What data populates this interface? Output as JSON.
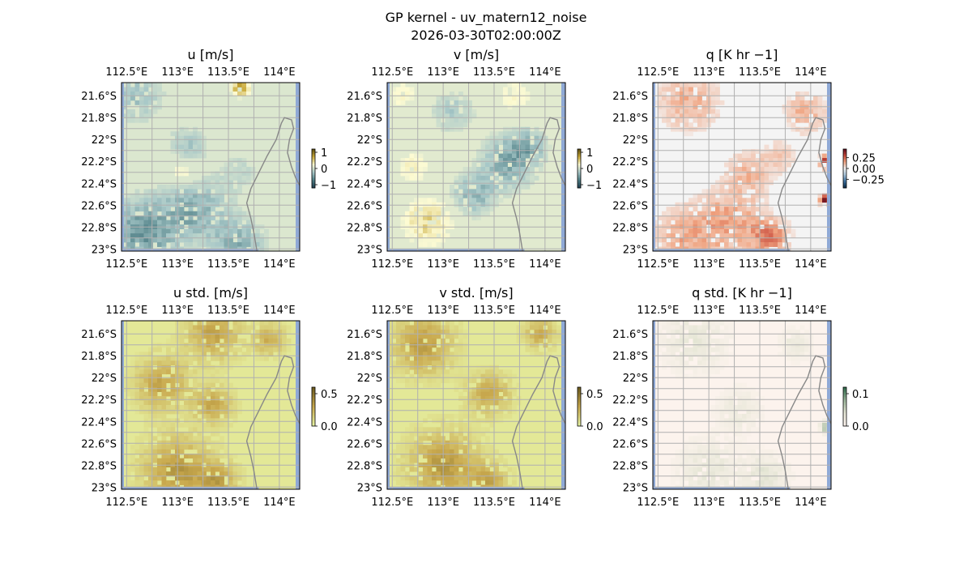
{
  "figure": {
    "title": "GP kernel - uv_matern12_noise",
    "subtitle": "2026-03-30T02:00:00Z"
  },
  "chart_data": [
    {
      "type": "heatmap",
      "title": "u [m/s]",
      "x_ticks": [
        "112.5°E",
        "113°E",
        "113.5°E",
        "114°E"
      ],
      "y_ticks": [
        "21.6°S",
        "21.8°S",
        "22°S",
        "22.2°S",
        "22.4°S",
        "22.6°S",
        "22.8°S",
        "23°S"
      ],
      "extent": {
        "lon": [
          112.45,
          114.2
        ],
        "lat": [
          -23.02,
          -21.48
        ]
      },
      "colorbar": {
        "ticks": [
          1,
          0,
          -1
        ],
        "tick_labels": [
          "1",
          "0",
          "−1"
        ],
        "range": [
          -1.2,
          1.2
        ]
      },
      "colormap": [
        "#1f3e4f",
        "#4f7f86",
        "#a8c8c8",
        "#fdfbd3",
        "#c9a938",
        "#5a4c10"
      ],
      "field": {
        "base": 0.05,
        "patches": [
          {
            "lon": 112.6,
            "lat": -21.6,
            "r": 0.25,
            "v": -0.25
          },
          {
            "lon": 113.1,
            "lat": -22.05,
            "r": 0.18,
            "v": -0.22
          },
          {
            "lon": 113.15,
            "lat": -22.65,
            "r": 0.3,
            "v": -0.4
          },
          {
            "lon": 112.65,
            "lat": -22.85,
            "r": 0.3,
            "v": -0.55
          },
          {
            "lon": 113.6,
            "lat": -22.95,
            "r": 0.25,
            "v": -0.35
          },
          {
            "lon": 113.62,
            "lat": -21.52,
            "r": 0.08,
            "v": 0.8
          },
          {
            "lon": 113.05,
            "lat": -22.3,
            "r": 0.15,
            "v": 0.3
          },
          {
            "lon": 113.6,
            "lat": -22.3,
            "r": 0.22,
            "v": -0.1
          }
        ]
      }
    },
    {
      "type": "heatmap",
      "title": "v [m/s]",
      "x_ticks": [
        "112.5°E",
        "113°E",
        "113.5°E",
        "114°E"
      ],
      "y_ticks": [
        "21.6°S",
        "21.8°S",
        "22°S",
        "22.2°S",
        "22.4°S",
        "22.6°S",
        "22.8°S",
        "23°S"
      ],
      "extent": {
        "lon": [
          112.45,
          114.2
        ],
        "lat": [
          -23.02,
          -21.48
        ]
      },
      "colorbar": {
        "ticks": [
          1,
          0,
          -1
        ],
        "tick_labels": [
          "1",
          "0",
          "−1"
        ],
        "range": [
          -1.2,
          1.2
        ]
      },
      "colormap": [
        "#1f3e4f",
        "#4f7f86",
        "#a8c8c8",
        "#fdfbd3",
        "#c9a938",
        "#5a4c10"
      ],
      "field": {
        "base": 0.08,
        "patches": [
          {
            "lon": 113.65,
            "lat": -22.2,
            "r": 0.25,
            "v": -0.45
          },
          {
            "lon": 113.3,
            "lat": -22.5,
            "r": 0.2,
            "v": -0.35
          },
          {
            "lon": 113.85,
            "lat": -22.05,
            "r": 0.15,
            "v": -0.3
          },
          {
            "lon": 112.85,
            "lat": -22.75,
            "r": 0.22,
            "v": 0.45
          },
          {
            "lon": 112.7,
            "lat": -22.25,
            "r": 0.15,
            "v": 0.3
          },
          {
            "lon": 113.1,
            "lat": -21.75,
            "r": 0.2,
            "v": -0.2
          },
          {
            "lon": 113.7,
            "lat": -21.6,
            "r": 0.18,
            "v": 0.25
          },
          {
            "lon": 112.6,
            "lat": -21.6,
            "r": 0.15,
            "v": 0.25
          }
        ]
      }
    },
    {
      "type": "heatmap",
      "title": "q [K hr −1]",
      "x_ticks": [
        "112.5°E",
        "113°E",
        "113.5°E",
        "114°E"
      ],
      "y_ticks": [
        "21.6°S",
        "21.8°S",
        "22°S",
        "22.2°S",
        "22.4°S",
        "22.6°S",
        "22.8°S",
        "23°S"
      ],
      "extent": {
        "lon": [
          112.45,
          114.2
        ],
        "lat": [
          -23.02,
          -21.48
        ]
      },
      "colorbar": {
        "ticks": [
          0.25,
          0.0,
          -0.25
        ],
        "tick_labels": [
          "0.25",
          "0.00",
          "−0.25"
        ],
        "range": [
          -0.45,
          0.45
        ]
      },
      "colormap": [
        "#0b2a45",
        "#3b6f9e",
        "#a7c4da",
        "#f4f4f4",
        "#f0a380",
        "#c6473a",
        "#5e0a1c"
      ],
      "field": {
        "base": 0.0,
        "patches": [
          {
            "lon": 112.8,
            "lat": -21.65,
            "r": 0.3,
            "v": 0.12
          },
          {
            "lon": 113.4,
            "lat": -22.3,
            "r": 0.22,
            "v": 0.1
          },
          {
            "lon": 113.2,
            "lat": -22.75,
            "r": 0.32,
            "v": 0.14
          },
          {
            "lon": 112.75,
            "lat": -22.9,
            "r": 0.3,
            "v": 0.12
          },
          {
            "lon": 113.6,
            "lat": -22.9,
            "r": 0.18,
            "v": 0.2
          },
          {
            "lon": 113.95,
            "lat": -21.75,
            "r": 0.2,
            "v": 0.12
          },
          {
            "lon": 113.7,
            "lat": -22.15,
            "r": 0.15,
            "v": 0.08
          },
          {
            "lon": 114.15,
            "lat": -22.2,
            "r": 0.06,
            "v": 0.35
          },
          {
            "lon": 114.15,
            "lat": -22.55,
            "r": 0.05,
            "v": 0.45
          }
        ]
      }
    },
    {
      "type": "heatmap",
      "title": "u std. [m/s]",
      "x_ticks": [
        "112.5°E",
        "113°E",
        "113.5°E",
        "114°E"
      ],
      "y_ticks": [
        "21.6°S",
        "21.8°S",
        "22°S",
        "22.2°S",
        "22.4°S",
        "22.6°S",
        "22.8°S",
        "23°S"
      ],
      "extent": {
        "lon": [
          112.45,
          114.2
        ],
        "lat": [
          -23.02,
          -21.48
        ]
      },
      "colorbar": {
        "ticks": [
          0.5,
          0.0
        ],
        "tick_labels": [
          "0.5",
          "0.0"
        ],
        "range": [
          0,
          0.6
        ]
      },
      "colormap": [
        "#e8f5a6",
        "#c9a94e",
        "#6b5a1e"
      ],
      "field": {
        "base": 0.05,
        "patches": [
          {
            "lon": 112.85,
            "lat": -22.05,
            "r": 0.25,
            "v": 0.32
          },
          {
            "lon": 113.35,
            "lat": -21.6,
            "r": 0.25,
            "v": 0.32
          },
          {
            "lon": 113.35,
            "lat": -22.25,
            "r": 0.18,
            "v": 0.3
          },
          {
            "lon": 113.0,
            "lat": -22.85,
            "r": 0.32,
            "v": 0.36
          },
          {
            "lon": 113.4,
            "lat": -22.95,
            "r": 0.18,
            "v": 0.3
          },
          {
            "lon": 113.9,
            "lat": -21.65,
            "r": 0.15,
            "v": 0.28
          }
        ]
      }
    },
    {
      "type": "heatmap",
      "title": "v std. [m/s]",
      "x_ticks": [
        "112.5°E",
        "113°E",
        "113.5°E",
        "114°E"
      ],
      "y_ticks": [
        "21.6°S",
        "21.8°S",
        "22°S",
        "22.2°S",
        "22.4°S",
        "22.6°S",
        "22.8°S",
        "23°S"
      ],
      "extent": {
        "lon": [
          112.45,
          114.2
        ],
        "lat": [
          -23.02,
          -21.48
        ]
      },
      "colorbar": {
        "ticks": [
          0.5,
          0.0
        ],
        "tick_labels": [
          "0.5",
          "0.0"
        ],
        "range": [
          0,
          0.6
        ]
      },
      "colormap": [
        "#e8f5a6",
        "#c9a94e",
        "#6b5a1e"
      ],
      "field": {
        "base": 0.05,
        "patches": [
          {
            "lon": 112.8,
            "lat": -21.7,
            "r": 0.28,
            "v": 0.34
          },
          {
            "lon": 113.45,
            "lat": -22.15,
            "r": 0.2,
            "v": 0.3
          },
          {
            "lon": 113.0,
            "lat": -22.8,
            "r": 0.32,
            "v": 0.36
          },
          {
            "lon": 113.45,
            "lat": -22.95,
            "r": 0.18,
            "v": 0.3
          },
          {
            "lon": 113.95,
            "lat": -21.6,
            "r": 0.15,
            "v": 0.28
          }
        ]
      }
    },
    {
      "type": "heatmap",
      "title": "q std. [K hr −1]",
      "x_ticks": [
        "112.5°E",
        "113°E",
        "113.5°E",
        "114°E"
      ],
      "y_ticks": [
        "21.6°S",
        "21.8°S",
        "22°S",
        "22.2°S",
        "22.4°S",
        "22.6°S",
        "22.8°S",
        "23°S"
      ],
      "extent": {
        "lon": [
          112.45,
          114.2
        ],
        "lat": [
          -23.02,
          -21.48
        ]
      },
      "colorbar": {
        "ticks": [
          0.1,
          0.0
        ],
        "tick_labels": [
          "0.1",
          "0.0"
        ],
        "range": [
          0,
          0.12
        ]
      },
      "colormap": [
        "#fff5f0",
        "#e6e6d6",
        "#9bb59a",
        "#2d6a4a"
      ],
      "field": {
        "base": 0.005,
        "patches": [
          {
            "lon": 112.85,
            "lat": -21.65,
            "r": 0.3,
            "v": 0.035
          },
          {
            "lon": 113.3,
            "lat": -22.3,
            "r": 0.2,
            "v": 0.03
          },
          {
            "lon": 113.0,
            "lat": -22.85,
            "r": 0.28,
            "v": 0.035
          },
          {
            "lon": 113.55,
            "lat": -22.9,
            "r": 0.2,
            "v": 0.04
          },
          {
            "lon": 113.85,
            "lat": -21.7,
            "r": 0.15,
            "v": 0.03
          },
          {
            "lon": 114.15,
            "lat": -22.45,
            "r": 0.05,
            "v": 0.08
          }
        ]
      }
    }
  ],
  "colors": {
    "coastline": "#888888",
    "gridline": "#b0b0b0",
    "ocean_border": "#8fa9d6"
  }
}
